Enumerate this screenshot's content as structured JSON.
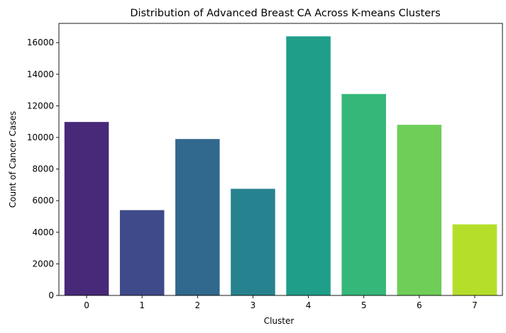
{
  "chart_data": {
    "type": "bar",
    "title": "Distribution of Advanced Breast CA Across K-means Clusters",
    "xlabel": "Cluster",
    "ylabel": "Count of Cancer Cases",
    "categories": [
      "0",
      "1",
      "2",
      "3",
      "4",
      "5",
      "6",
      "7"
    ],
    "values": [
      10980,
      5400,
      9900,
      6750,
      16400,
      12750,
      10800,
      4500
    ],
    "colors": [
      "#482878",
      "#3e4a89",
      "#31688e",
      "#26828e",
      "#1f9e89",
      "#35b779",
      "#6ece58",
      "#b5de2b"
    ],
    "ylim": [
      0,
      17220
    ],
    "yticks": [
      0,
      2000,
      4000,
      6000,
      8000,
      10000,
      12000,
      14000,
      16000
    ],
    "grid": false,
    "palette": "viridis"
  }
}
